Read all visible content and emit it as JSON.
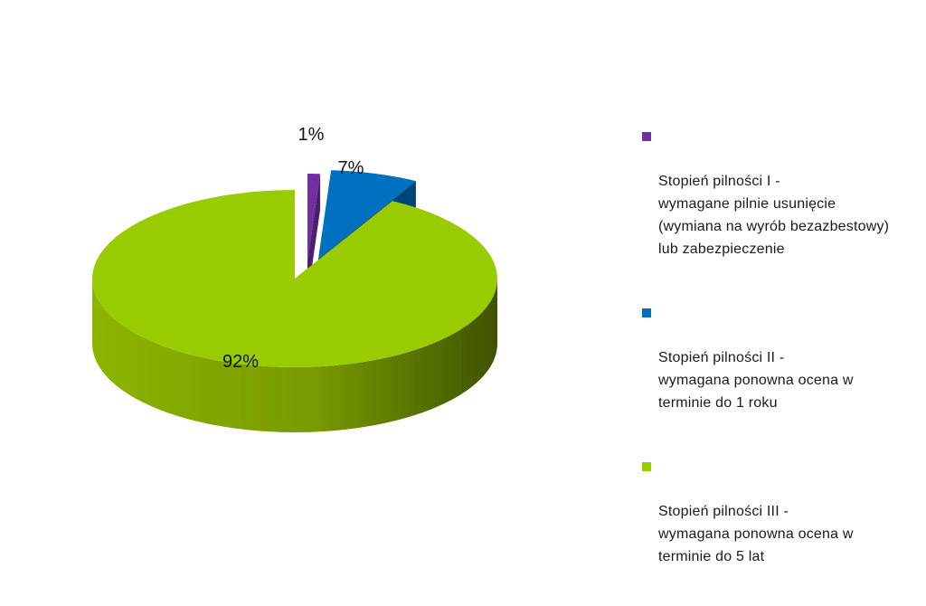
{
  "chart_data": {
    "type": "pie",
    "style": "3d-exploded",
    "slices": [
      {
        "label": "1%",
        "value": 1,
        "color": "#7030A0",
        "side_color": "#4A1F6B",
        "legend": "Stopień pilności I -\nwymagane pilnie usunięcie\n(wymiana na wyrób bezazbestowy)\nlub zabezpieczenie"
      },
      {
        "label": "7%",
        "value": 7,
        "color": "#0070C0",
        "side_color": "#00457A",
        "legend": "Stopień pilności II -\nwymagana ponowna ocena w\nterminie do 1 roku"
      },
      {
        "label": "92%",
        "value": 92,
        "color": "#99CC00",
        "side_color": "#5E7D00",
        "legend": "Stopień pilności III -\nwymagana ponowna ocena w\nterminie do 5 lat"
      }
    ],
    "legend_position": "right"
  }
}
